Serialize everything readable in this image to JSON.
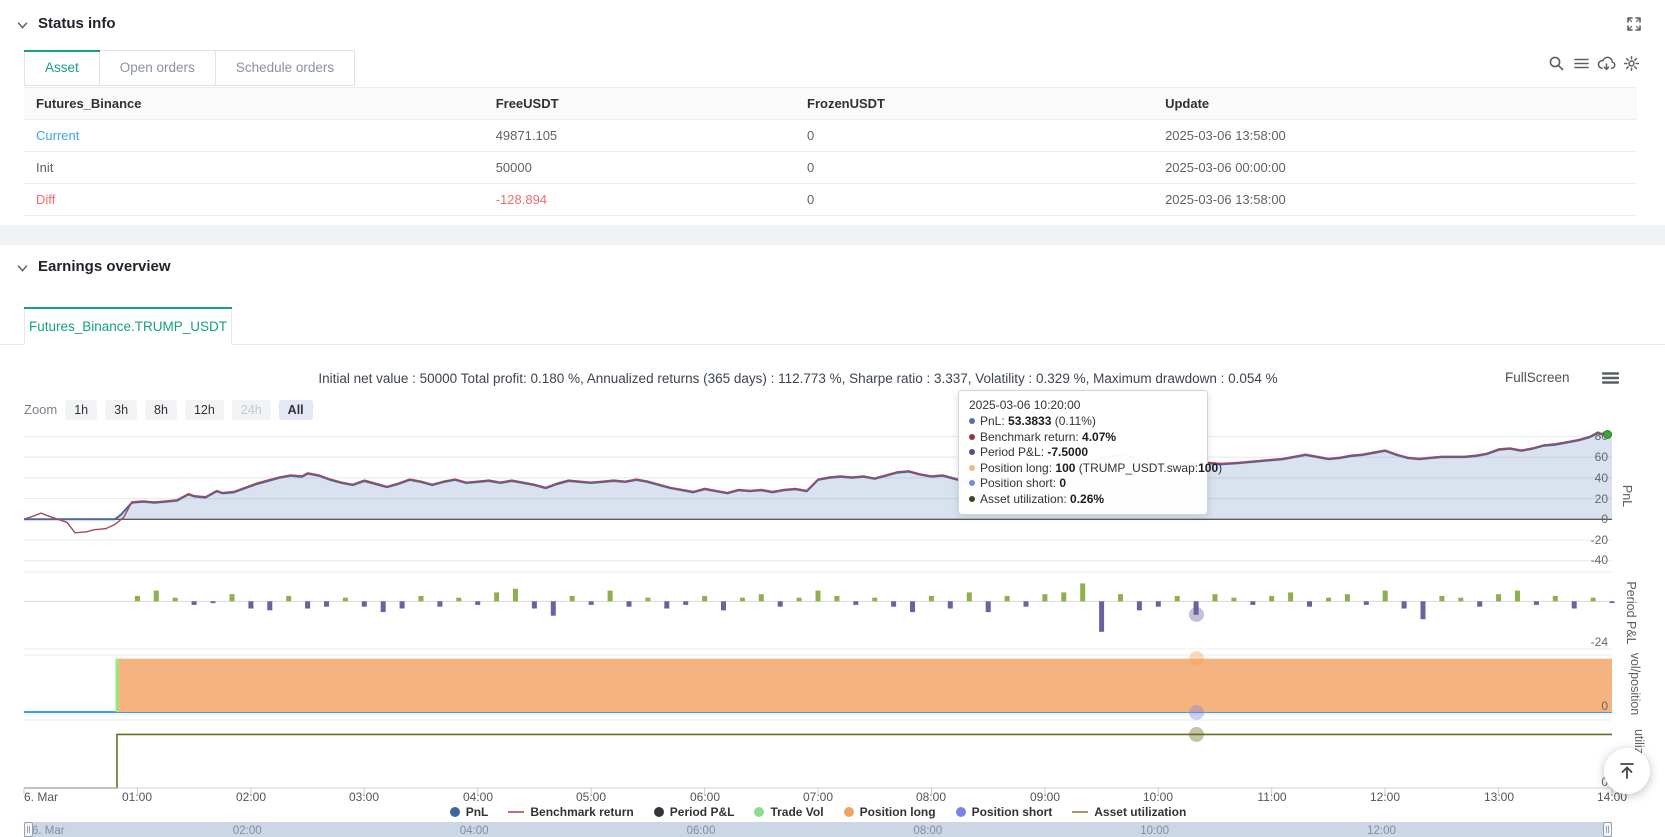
{
  "colors": {
    "accent_green": "#13a182",
    "link_blue": "#409eff",
    "negative_red": "#f56c6c",
    "pnl_line": "#46699c",
    "pnl_fill": "rgba(84,122,176,0.22)",
    "benchmark_line": "#a5485a",
    "bar_positive": "#8fae4e",
    "bar_negative": "#6e5fa0",
    "position_long_fill": "#f5b37f",
    "position_short_line": "#3aa0e8",
    "entry_line_green": "#90ed7d",
    "trade_vol_green": "#3fa33c",
    "utilization_line": "#6b6b23",
    "grid_line": "#e8e8e8",
    "zero_line": "#5a5a5a"
  },
  "status_info": {
    "title": "Status info",
    "tabs": [
      {
        "label": "Asset",
        "active": true
      },
      {
        "label": "Open orders",
        "active": false
      },
      {
        "label": "Schedule orders",
        "active": false
      }
    ],
    "toolbar_icons": [
      "search-icon",
      "list-icon",
      "cloud-download-icon",
      "gear-icon"
    ],
    "table": {
      "headers": [
        "Futures_Binance",
        "FreeUSDT",
        "FrozenUSDT",
        "Update"
      ],
      "rows": [
        {
          "cells": [
            "Current",
            "49871.105",
            "0",
            "2025-03-06 13:58:00"
          ],
          "row_style": "link"
        },
        {
          "cells": [
            "Init",
            "50000",
            "0",
            "2025-03-06 00:00:00"
          ],
          "row_style": "normal"
        },
        {
          "cells": [
            "Diff",
            "-128.894",
            "0",
            "2025-03-06 13:58:00"
          ],
          "row_style": "negative"
        }
      ]
    }
  },
  "earnings": {
    "title": "Earnings overview",
    "tab": "Futures_Binance.TRUMP_USDT",
    "summary": "Initial net value : 50000 Total profit: 0.180 %, Annualized returns (365 days) : 112.773 %, Sharpe ratio : 3.337, Volatility : 0.329 %, Maximum drawdown : 0.054 %",
    "fullscreen_label": "FullScreen",
    "zoom_controls": {
      "label": "Zoom",
      "buttons": [
        "1h",
        "3h",
        "8h",
        "12h",
        "24h",
        "All"
      ],
      "active": "All",
      "disabled": "24h"
    }
  },
  "tooltip": {
    "time": "2025-03-06 10:20:00",
    "rows": [
      {
        "color": "#4b74ad",
        "parts": [
          {
            "t": "PnL: ",
            "b": false
          },
          {
            "t": "53.3833",
            "b": true
          },
          {
            "t": " (0.11%)",
            "b": false
          }
        ]
      },
      {
        "color": "#8d3a43",
        "parts": [
          {
            "t": "Benchmark return: ",
            "b": false
          },
          {
            "t": "4.07%",
            "b": true
          }
        ]
      },
      {
        "color": "#584d8c",
        "parts": [
          {
            "t": "Period P&L: ",
            "b": false
          },
          {
            "t": "-7.5000",
            "b": true
          }
        ]
      },
      {
        "color": "#f3b77e",
        "parts": [
          {
            "t": "Position long: ",
            "b": false
          },
          {
            "t": "100",
            "b": true
          },
          {
            "t": " (TRUMP_USDT.swap:",
            "b": false
          },
          {
            "t": "100",
            "b": true
          },
          {
            "t": ")",
            "b": false
          }
        ]
      },
      {
        "color": "#7f84e3",
        "parts": [
          {
            "t": "Position short: ",
            "b": false
          },
          {
            "t": "0",
            "b": true
          }
        ]
      },
      {
        "color": "#4a431a",
        "parts": [
          {
            "t": "Asset utilization: ",
            "b": false
          },
          {
            "t": "0.26%",
            "b": true
          }
        ]
      }
    ]
  },
  "chart_data": {
    "type": "multi-panel timeseries (line + bar + area)",
    "x_unit": "hours since 2025-03-06 00:00",
    "x_range": [
      0,
      14
    ],
    "x_ticks": [
      {
        "h": 0,
        "label": "6. Mar"
      },
      {
        "h": 1,
        "label": "01:00"
      },
      {
        "h": 2,
        "label": "02:00"
      },
      {
        "h": 3,
        "label": "03:00"
      },
      {
        "h": 4,
        "label": "04:00"
      },
      {
        "h": 5,
        "label": "05:00"
      },
      {
        "h": 6,
        "label": "06:00"
      },
      {
        "h": 7,
        "label": "07:00"
      },
      {
        "h": 8,
        "label": "08:00"
      },
      {
        "h": 9,
        "label": "09:00"
      },
      {
        "h": 10,
        "label": "10:00"
      },
      {
        "h": 11,
        "label": "11:00"
      },
      {
        "h": 12,
        "label": "12:00"
      },
      {
        "h": 13,
        "label": "13:00"
      },
      {
        "h": 14,
        "label": "14:00"
      }
    ],
    "panels": [
      {
        "title": "PnL",
        "ylim": [
          -45,
          90
        ],
        "yticks": [
          80,
          60,
          40,
          20,
          0,
          -20,
          -40
        ]
      },
      {
        "title": "Period P&L",
        "ylim": [
          -26,
          13
        ],
        "yticks": [
          -24
        ]
      },
      {
        "title": "vol/position",
        "ylim": [
          0,
          105
        ],
        "yticks": [
          0
        ]
      },
      {
        "title": "utilizatio..",
        "ylim": [
          0,
          0.32
        ],
        "yticks": [
          0
        ]
      }
    ],
    "pnl": {
      "name": "PnL",
      "points": [
        [
          0,
          0
        ],
        [
          0.8,
          0
        ],
        [
          0.85,
          4
        ],
        [
          0.95,
          16
        ],
        [
          1.05,
          17
        ],
        [
          1.15,
          16
        ],
        [
          1.25,
          17
        ],
        [
          1.35,
          18
        ],
        [
          1.45,
          24
        ],
        [
          1.5,
          22
        ],
        [
          1.6,
          21
        ],
        [
          1.7,
          27
        ],
        [
          1.75,
          25
        ],
        [
          1.85,
          26
        ],
        [
          1.95,
          30
        ],
        [
          2.05,
          34
        ],
        [
          2.15,
          37
        ],
        [
          2.25,
          40
        ],
        [
          2.35,
          42
        ],
        [
          2.45,
          41
        ],
        [
          2.5,
          44
        ],
        [
          2.6,
          42
        ],
        [
          2.7,
          38
        ],
        [
          2.8,
          35
        ],
        [
          2.9,
          33
        ],
        [
          3,
          37
        ],
        [
          3.1,
          34
        ],
        [
          3.2,
          31
        ],
        [
          3.3,
          34
        ],
        [
          3.4,
          38
        ],
        [
          3.5,
          36
        ],
        [
          3.6,
          33
        ],
        [
          3.7,
          36
        ],
        [
          3.8,
          38
        ],
        [
          3.9,
          35
        ],
        [
          4,
          36
        ],
        [
          4.1,
          37
        ],
        [
          4.2,
          35
        ],
        [
          4.3,
          37
        ],
        [
          4.4,
          35
        ],
        [
          4.5,
          33
        ],
        [
          4.6,
          30
        ],
        [
          4.7,
          34
        ],
        [
          4.8,
          37
        ],
        [
          4.9,
          36
        ],
        [
          5,
          35
        ],
        [
          5.1,
          36
        ],
        [
          5.2,
          37
        ],
        [
          5.3,
          36
        ],
        [
          5.4,
          38
        ],
        [
          5.5,
          36
        ],
        [
          5.6,
          33
        ],
        [
          5.7,
          30
        ],
        [
          5.8,
          28
        ],
        [
          5.9,
          26
        ],
        [
          6,
          29
        ],
        [
          6.1,
          27
        ],
        [
          6.2,
          25
        ],
        [
          6.3,
          28
        ],
        [
          6.4,
          27
        ],
        [
          6.5,
          28
        ],
        [
          6.6,
          26
        ],
        [
          6.7,
          28
        ],
        [
          6.8,
          29
        ],
        [
          6.9,
          27
        ],
        [
          7,
          38
        ],
        [
          7.1,
          40
        ],
        [
          7.2,
          41
        ],
        [
          7.3,
          40
        ],
        [
          7.4,
          41
        ],
        [
          7.5,
          39
        ],
        [
          7.6,
          42
        ],
        [
          7.7,
          45
        ],
        [
          7.8,
          46
        ],
        [
          7.9,
          43
        ],
        [
          8,
          41
        ],
        [
          8.1,
          42
        ],
        [
          8.2,
          39
        ],
        [
          8.3,
          36
        ],
        [
          8.4,
          39
        ],
        [
          8.5,
          42
        ],
        [
          8.6,
          45
        ],
        [
          8.7,
          49
        ],
        [
          8.8,
          53
        ],
        [
          8.9,
          57
        ],
        [
          9,
          60
        ],
        [
          9.1,
          62
        ],
        [
          9.2,
          63
        ],
        [
          9.3,
          59
        ],
        [
          9.4,
          55
        ],
        [
          9.5,
          58
        ],
        [
          9.6,
          61
        ],
        [
          9.7,
          63
        ],
        [
          9.8,
          58
        ],
        [
          9.9,
          54
        ],
        [
          10,
          52
        ],
        [
          10.1,
          50
        ],
        [
          10.2,
          52
        ],
        [
          10.33,
          53.4
        ],
        [
          10.45,
          54
        ],
        [
          10.55,
          53
        ],
        [
          10.7,
          54
        ],
        [
          10.8,
          55
        ],
        [
          10.9,
          56
        ],
        [
          11,
          57
        ],
        [
          11.1,
          58
        ],
        [
          11.2,
          60
        ],
        [
          11.3,
          62
        ],
        [
          11.4,
          60
        ],
        [
          11.5,
          58
        ],
        [
          11.6,
          59
        ],
        [
          11.7,
          61
        ],
        [
          11.8,
          62
        ],
        [
          11.9,
          64
        ],
        [
          12,
          66
        ],
        [
          12.1,
          62
        ],
        [
          12.2,
          59
        ],
        [
          12.3,
          58
        ],
        [
          12.4,
          59
        ],
        [
          12.5,
          60
        ],
        [
          12.6,
          60
        ],
        [
          12.7,
          60
        ],
        [
          12.8,
          61
        ],
        [
          12.9,
          63
        ],
        [
          13,
          67
        ],
        [
          13.1,
          68
        ],
        [
          13.2,
          66
        ],
        [
          13.3,
          68
        ],
        [
          13.4,
          71
        ],
        [
          13.5,
          72
        ],
        [
          13.6,
          74
        ],
        [
          13.7,
          76
        ],
        [
          13.8,
          79
        ],
        [
          13.87,
          83
        ],
        [
          13.95,
          81
        ],
        [
          14,
          82
        ]
      ]
    },
    "benchmark": {
      "name": "Benchmark return",
      "early_points": [
        [
          0,
          0
        ],
        [
          0.08,
          3
        ],
        [
          0.15,
          6
        ],
        [
          0.22,
          3
        ],
        [
          0.3,
          0
        ],
        [
          0.38,
          -3
        ],
        [
          0.45,
          -13
        ],
        [
          0.55,
          -12
        ],
        [
          0.62,
          -10
        ],
        [
          0.72,
          -9
        ],
        [
          0.8,
          -5
        ],
        [
          0.88,
          2
        ]
      ],
      "follows_pnl_from_hour": 0.95,
      "offset": 0.8
    },
    "period_pnl": {
      "name": "Period P&L",
      "start_hour": 1.0,
      "step_hours": 0.16667,
      "values": [
        3,
        6,
        2,
        -2,
        -1,
        4,
        -4,
        -5,
        3,
        -4,
        -3,
        2,
        -3,
        -6,
        -4,
        3,
        -3,
        2,
        -2,
        5,
        7,
        -4,
        -8,
        3,
        -2,
        6,
        -3,
        2,
        -4,
        -2,
        3,
        -5,
        2,
        4,
        -3,
        2,
        6,
        3,
        -2,
        2,
        -3,
        -6,
        3,
        -4,
        5,
        -6,
        3,
        -3,
        4,
        5,
        10,
        -17,
        4,
        -5,
        -3,
        3,
        -7.5,
        4,
        2,
        -2,
        3,
        5,
        -3,
        2,
        4,
        -2,
        6,
        -4,
        -10,
        3,
        2,
        -3,
        4,
        6,
        -2,
        3,
        -4,
        2,
        -1
      ]
    },
    "trade_vol_markers": {
      "name": "Trade Vol",
      "points": [
        [
          8.48,
          42
        ],
        [
          14,
          82
        ]
      ]
    },
    "position_long": {
      "name": "Position long",
      "entry_hour": 0.82,
      "value": 100
    },
    "position_short": {
      "name": "Position short",
      "value": 0
    },
    "utilization": {
      "name": "Asset utilization",
      "entry_hour": 0.82,
      "value": 0.26
    },
    "hover": {
      "hour": 10.333,
      "markers": [
        {
          "panel": 1,
          "value": -7.5,
          "color": "#6e5fa0"
        },
        {
          "panel": 2,
          "value": 100,
          "color": "#f7a35c"
        },
        {
          "panel": 2,
          "value": 0,
          "color": "#8085e9"
        },
        {
          "panel": 3,
          "value": 0.26,
          "color": "#6b6b23"
        }
      ]
    },
    "legend": [
      {
        "label": "PnL",
        "shape": "circle",
        "color": "#3c66a0"
      },
      {
        "label": "Benchmark return",
        "shape": "line",
        "color": "#c76a75"
      },
      {
        "label": "Period P&L",
        "shape": "circle",
        "color": "#34343c"
      },
      {
        "label": "Trade Vol",
        "shape": "circle",
        "color": "#8ae08a"
      },
      {
        "label": "Position long",
        "shape": "circle",
        "color": "#f2a360"
      },
      {
        "label": "Position short",
        "shape": "circle",
        "color": "#7d82e8"
      },
      {
        "label": "Asset utilization",
        "shape": "line",
        "color": "#a39b6b"
      }
    ],
    "navigator_ticks": [
      {
        "h": 0,
        "label": "6. Mar"
      },
      {
        "h": 2,
        "label": "02:00"
      },
      {
        "h": 4,
        "label": "04:00"
      },
      {
        "h": 6,
        "label": "06:00"
      },
      {
        "h": 8,
        "label": "08:00"
      },
      {
        "h": 10,
        "label": "10:00"
      },
      {
        "h": 12,
        "label": "12:00"
      }
    ]
  }
}
